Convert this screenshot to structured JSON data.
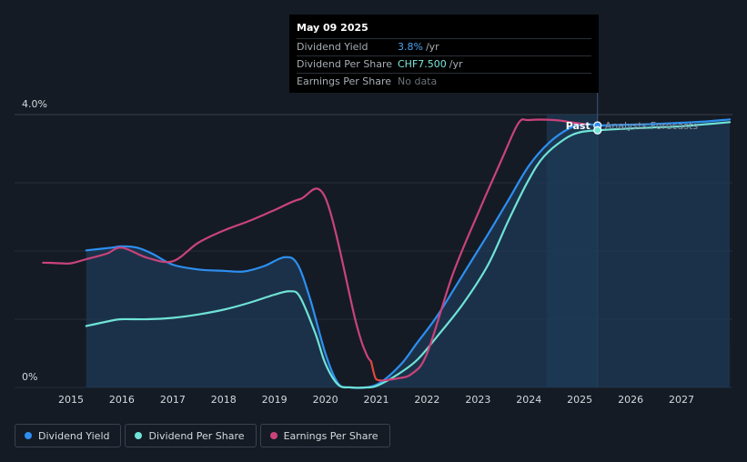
{
  "tooltip": {
    "date": "May 09 2025",
    "rows": [
      {
        "label": "Dividend Yield",
        "value": "3.8%",
        "unit": "/yr",
        "color": "#4aa3f0"
      },
      {
        "label": "Dividend Per Share",
        "value": "CHF7.500",
        "unit": "/yr",
        "color": "#7de8dc"
      },
      {
        "label": "Earnings Per Share",
        "value": "No data",
        "unit": "",
        "color": "#6b7079"
      }
    ]
  },
  "chart_data": {
    "type": "line",
    "ylabel_top": "4.0%",
    "ylabel_bottom": "0%",
    "ylim": [
      0,
      4.0
    ],
    "xlim": [
      2014.25,
      2027.95
    ],
    "x_ticks": [
      "2015",
      "2016",
      "2017",
      "2018",
      "2019",
      "2020",
      "2021",
      "2022",
      "2023",
      "2024",
      "2025",
      "2026",
      "2027"
    ],
    "past_label": "Past",
    "forecast_label": "Analysts Forecasts",
    "past_end": 2025.35,
    "highlight_start": 2024.35,
    "grid": true,
    "series": [
      {
        "name": "Dividend Yield",
        "color": "#2d8ff0",
        "x": [
          2015.3,
          2015.8,
          2016.0,
          2016.3,
          2016.6,
          2017.0,
          2017.5,
          2018.0,
          2018.4,
          2018.8,
          2019.2,
          2019.45,
          2019.7,
          2020.0,
          2020.25,
          2020.5,
          2020.8,
          2021.1,
          2021.5,
          2021.8,
          2022.2,
          2022.7,
          2023.2,
          2023.6,
          2024.0,
          2024.4,
          2024.8,
          2025.1,
          2025.35
        ],
        "y": [
          2.01,
          2.05,
          2.07,
          2.05,
          1.96,
          1.8,
          1.73,
          1.71,
          1.7,
          1.78,
          1.91,
          1.81,
          1.3,
          0.5,
          0.06,
          0.0,
          0.0,
          0.08,
          0.35,
          0.65,
          1.05,
          1.65,
          2.25,
          2.75,
          3.25,
          3.59,
          3.8,
          3.86,
          3.84
        ]
      },
      {
        "name": "Dividend Yield (forecast)",
        "color": "#2d8ff0",
        "x": [
          2025.35,
          2025.8,
          2026.4,
          2027.0,
          2027.5,
          2027.95
        ],
        "y": [
          3.84,
          3.85,
          3.86,
          3.88,
          3.9,
          3.93
        ]
      },
      {
        "name": "Dividend Per Share",
        "color": "#6fe3d6",
        "x": [
          2015.3,
          2015.8,
          2016.0,
          2016.5,
          2017.0,
          2017.5,
          2018.0,
          2018.5,
          2019.0,
          2019.3,
          2019.5,
          2019.8,
          2020.0,
          2020.25,
          2020.5,
          2020.8,
          2021.0,
          2021.4,
          2021.8,
          2022.2,
          2022.7,
          2023.2,
          2023.6,
          2024.0,
          2024.3,
          2024.7,
          2025.0,
          2025.35
        ],
        "y": [
          0.9,
          0.98,
          1.0,
          1.0,
          1.02,
          1.07,
          1.14,
          1.24,
          1.36,
          1.41,
          1.33,
          0.8,
          0.35,
          0.04,
          0.0,
          0.0,
          0.02,
          0.18,
          0.4,
          0.75,
          1.22,
          1.8,
          2.45,
          3.05,
          3.39,
          3.64,
          3.74,
          3.77
        ]
      },
      {
        "name": "Dividend Per Share (forecast)",
        "color": "#6fe3d6",
        "x": [
          2025.35,
          2025.8,
          2026.4,
          2027.0,
          2027.5,
          2027.95
        ],
        "y": [
          3.77,
          3.79,
          3.81,
          3.83,
          3.86,
          3.89
        ]
      },
      {
        "name": "Earnings Per Share",
        "color": "#c9437a",
        "x": [
          2014.45,
          2014.8,
          2015.0,
          2015.3,
          2015.7,
          2016.0,
          2016.5,
          2017.0,
          2017.5,
          2018.0,
          2018.5,
          2019.0,
          2019.5,
          2020.0,
          2020.6,
          2020.8,
          2020.9
        ],
        "y": [
          1.83,
          1.82,
          1.82,
          1.88,
          1.96,
          2.05,
          1.9,
          1.85,
          2.12,
          2.3,
          2.44,
          2.6,
          2.76,
          2.78,
          0.96,
          0.5,
          0.38
        ]
      },
      {
        "name": "Earnings Per Share (negative)",
        "color": "#e4473d",
        "x": [
          2020.9,
          2020.95,
          2021.0,
          2021.1
        ],
        "y": [
          0.38,
          0.22,
          0.12,
          0.1
        ]
      },
      {
        "name": "Earnings Per Share (recovery)",
        "color": "#c9437a",
        "x": [
          2021.1,
          2021.4,
          2021.7,
          2022.0,
          2022.5,
          2023.0,
          2023.5,
          2023.8,
          2024.0,
          2024.5,
          2024.9,
          2025.1
        ],
        "y": [
          0.1,
          0.13,
          0.2,
          0.5,
          1.65,
          2.55,
          3.4,
          3.88,
          3.92,
          3.92,
          3.88,
          3.86
        ]
      }
    ]
  },
  "legend": [
    {
      "label": "Dividend Yield",
      "color": "#2d8ff0"
    },
    {
      "label": "Dividend Per Share",
      "color": "#6fe3d6"
    },
    {
      "label": "Earnings Per Share",
      "color": "#c9437a"
    }
  ]
}
